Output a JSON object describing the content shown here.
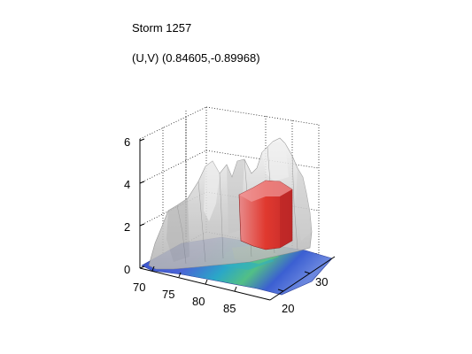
{
  "chart_data": {
    "type": "surface",
    "title": "Storm 1257",
    "subtitle": "(U,V) (0.84605,-0.89968)",
    "z_ticks": [
      "0",
      "2",
      "4",
      "6"
    ],
    "x_ticks": [
      "70",
      "75",
      "80",
      "85"
    ],
    "y_ticks": [
      "20",
      "30"
    ],
    "zlim": [
      0,
      6.5
    ],
    "grid": true,
    "colors": {
      "surface": "#d4d4d4",
      "surface_edge": "#8c8c8c",
      "highlight": "#e23b3b",
      "base_blue": "#3a5fd0",
      "base_cyan": "#27b6c9",
      "base_green": "#59c07a"
    }
  }
}
